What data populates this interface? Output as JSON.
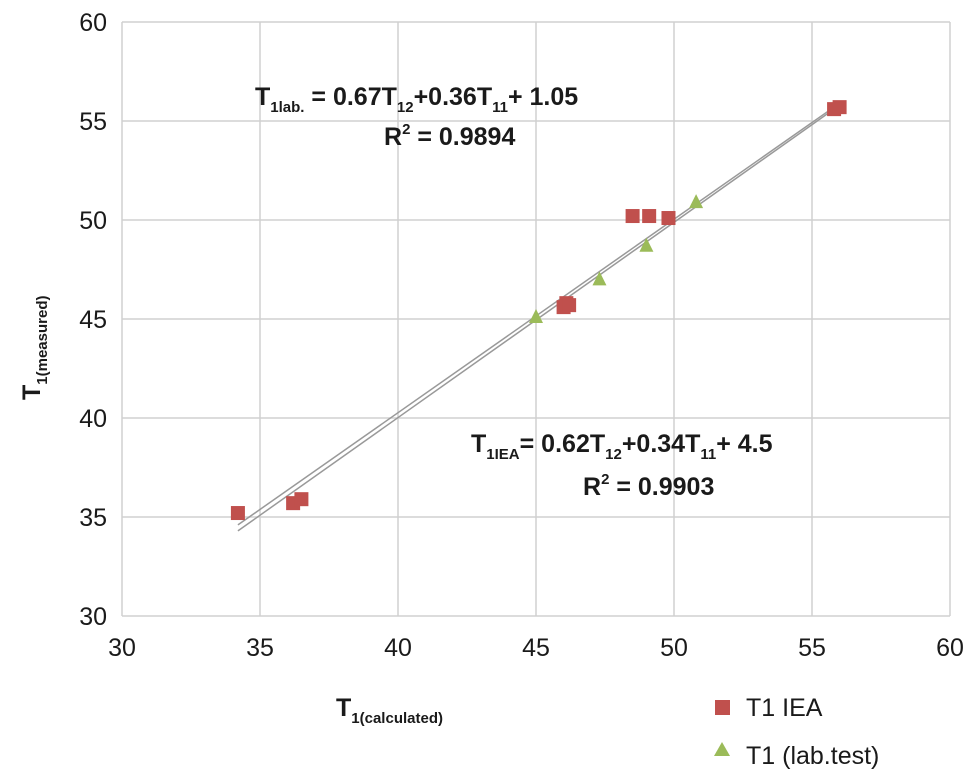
{
  "chart_data": {
    "type": "scatter",
    "xlim": [
      30,
      60
    ],
    "ylim": [
      30,
      60
    ],
    "x_ticks": [
      30,
      35,
      40,
      45,
      50,
      55,
      60
    ],
    "y_ticks": [
      30,
      35,
      40,
      45,
      50,
      55,
      60
    ],
    "grid": true,
    "legend_position": "bottom-right",
    "xlabel": {
      "main": "T",
      "sub": "1(calculated)"
    },
    "ylabel": {
      "main": "T",
      "sub": "1(measured)"
    },
    "series": [
      {
        "name": "T1 IEA",
        "marker": "square",
        "color": "#c0504d",
        "points": [
          [
            34.2,
            35.2
          ],
          [
            36.2,
            35.7
          ],
          [
            36.5,
            35.9
          ],
          [
            46.0,
            45.6
          ],
          [
            46.1,
            45.8
          ],
          [
            46.2,
            45.7
          ],
          [
            48.5,
            50.2
          ],
          [
            49.1,
            50.2
          ],
          [
            49.8,
            50.1
          ],
          [
            55.8,
            55.6
          ],
          [
            56.0,
            55.7
          ]
        ]
      },
      {
        "name": "T1 (lab.test)",
        "marker": "triangle",
        "color": "#9bbb59",
        "points": [
          [
            45.0,
            45.1
          ],
          [
            47.3,
            47.0
          ],
          [
            49.0,
            48.7
          ],
          [
            50.8,
            50.9
          ]
        ]
      }
    ],
    "trendlines": [
      {
        "series": "T1 (lab.test)",
        "x": [
          34.2,
          56.0
        ],
        "y": [
          34.3,
          55.8
        ],
        "color": "#999999"
      },
      {
        "series": "T1 IEA",
        "x": [
          34.2,
          56.0
        ],
        "y": [
          34.6,
          55.9
        ],
        "color": "#999999"
      }
    ],
    "annotations": [
      {
        "id": "lab",
        "parts": [
          {
            "t": "T"
          },
          {
            "t": "1lab.",
            "sub": true
          },
          {
            "t": " = 0.67T"
          },
          {
            "t": "12",
            "sub": true
          },
          {
            "t": "+0.36T"
          },
          {
            "t": "11",
            "sub": true
          },
          {
            "t": "+ 1.05"
          }
        ],
        "r2_label": "R",
        "r2_sup": "2",
        "r2_value": " = 0.9894"
      },
      {
        "id": "iea",
        "parts": [
          {
            "t": "T"
          },
          {
            "t": "1IEA",
            "sub": true
          },
          {
            "t": "= 0.62T"
          },
          {
            "t": "12",
            "sub": true
          },
          {
            "t": "+0.34T"
          },
          {
            "t": "11",
            "sub": true
          },
          {
            "t": "+ 4.5"
          }
        ],
        "r2_label": "R",
        "r2_sup": "2",
        "r2_value": " = 0.9903"
      }
    ]
  }
}
